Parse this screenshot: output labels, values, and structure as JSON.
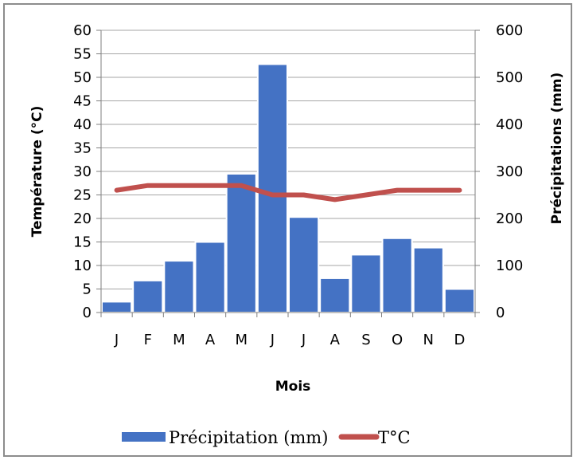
{
  "chart_data": {
    "type": "bar",
    "categories": [
      "J",
      "F",
      "M",
      "A",
      "M",
      "J",
      "J",
      "A",
      "S",
      "O",
      "N",
      "D"
    ],
    "xlabel": "Mois",
    "ylabel_left": "Température (°C)",
    "ylabel_right": "Précipitations (mm)",
    "ylim_left": [
      0,
      60
    ],
    "ylim_right": [
      0,
      600
    ],
    "yticks_left": [
      "0",
      "5",
      "10",
      "15",
      "20",
      "25",
      "30",
      "35",
      "40",
      "45",
      "50",
      "55",
      "60"
    ],
    "yticks_right": [
      "0",
      "100",
      "200",
      "300",
      "400",
      "500",
      "600"
    ],
    "grid": true,
    "legend_position": "bottom",
    "series": [
      {
        "name": "Précipitation (mm)",
        "type": "bar",
        "axis": "right",
        "color": "#4472c4",
        "values": [
          23,
          68,
          110,
          150,
          295,
          528,
          203,
          73,
          123,
          158,
          138,
          50
        ]
      },
      {
        "name": "T°C",
        "type": "line",
        "axis": "left",
        "color": "#c0504d",
        "values": [
          26,
          27,
          27,
          27,
          27,
          25,
          25,
          24,
          25,
          26,
          26,
          26
        ]
      }
    ]
  }
}
